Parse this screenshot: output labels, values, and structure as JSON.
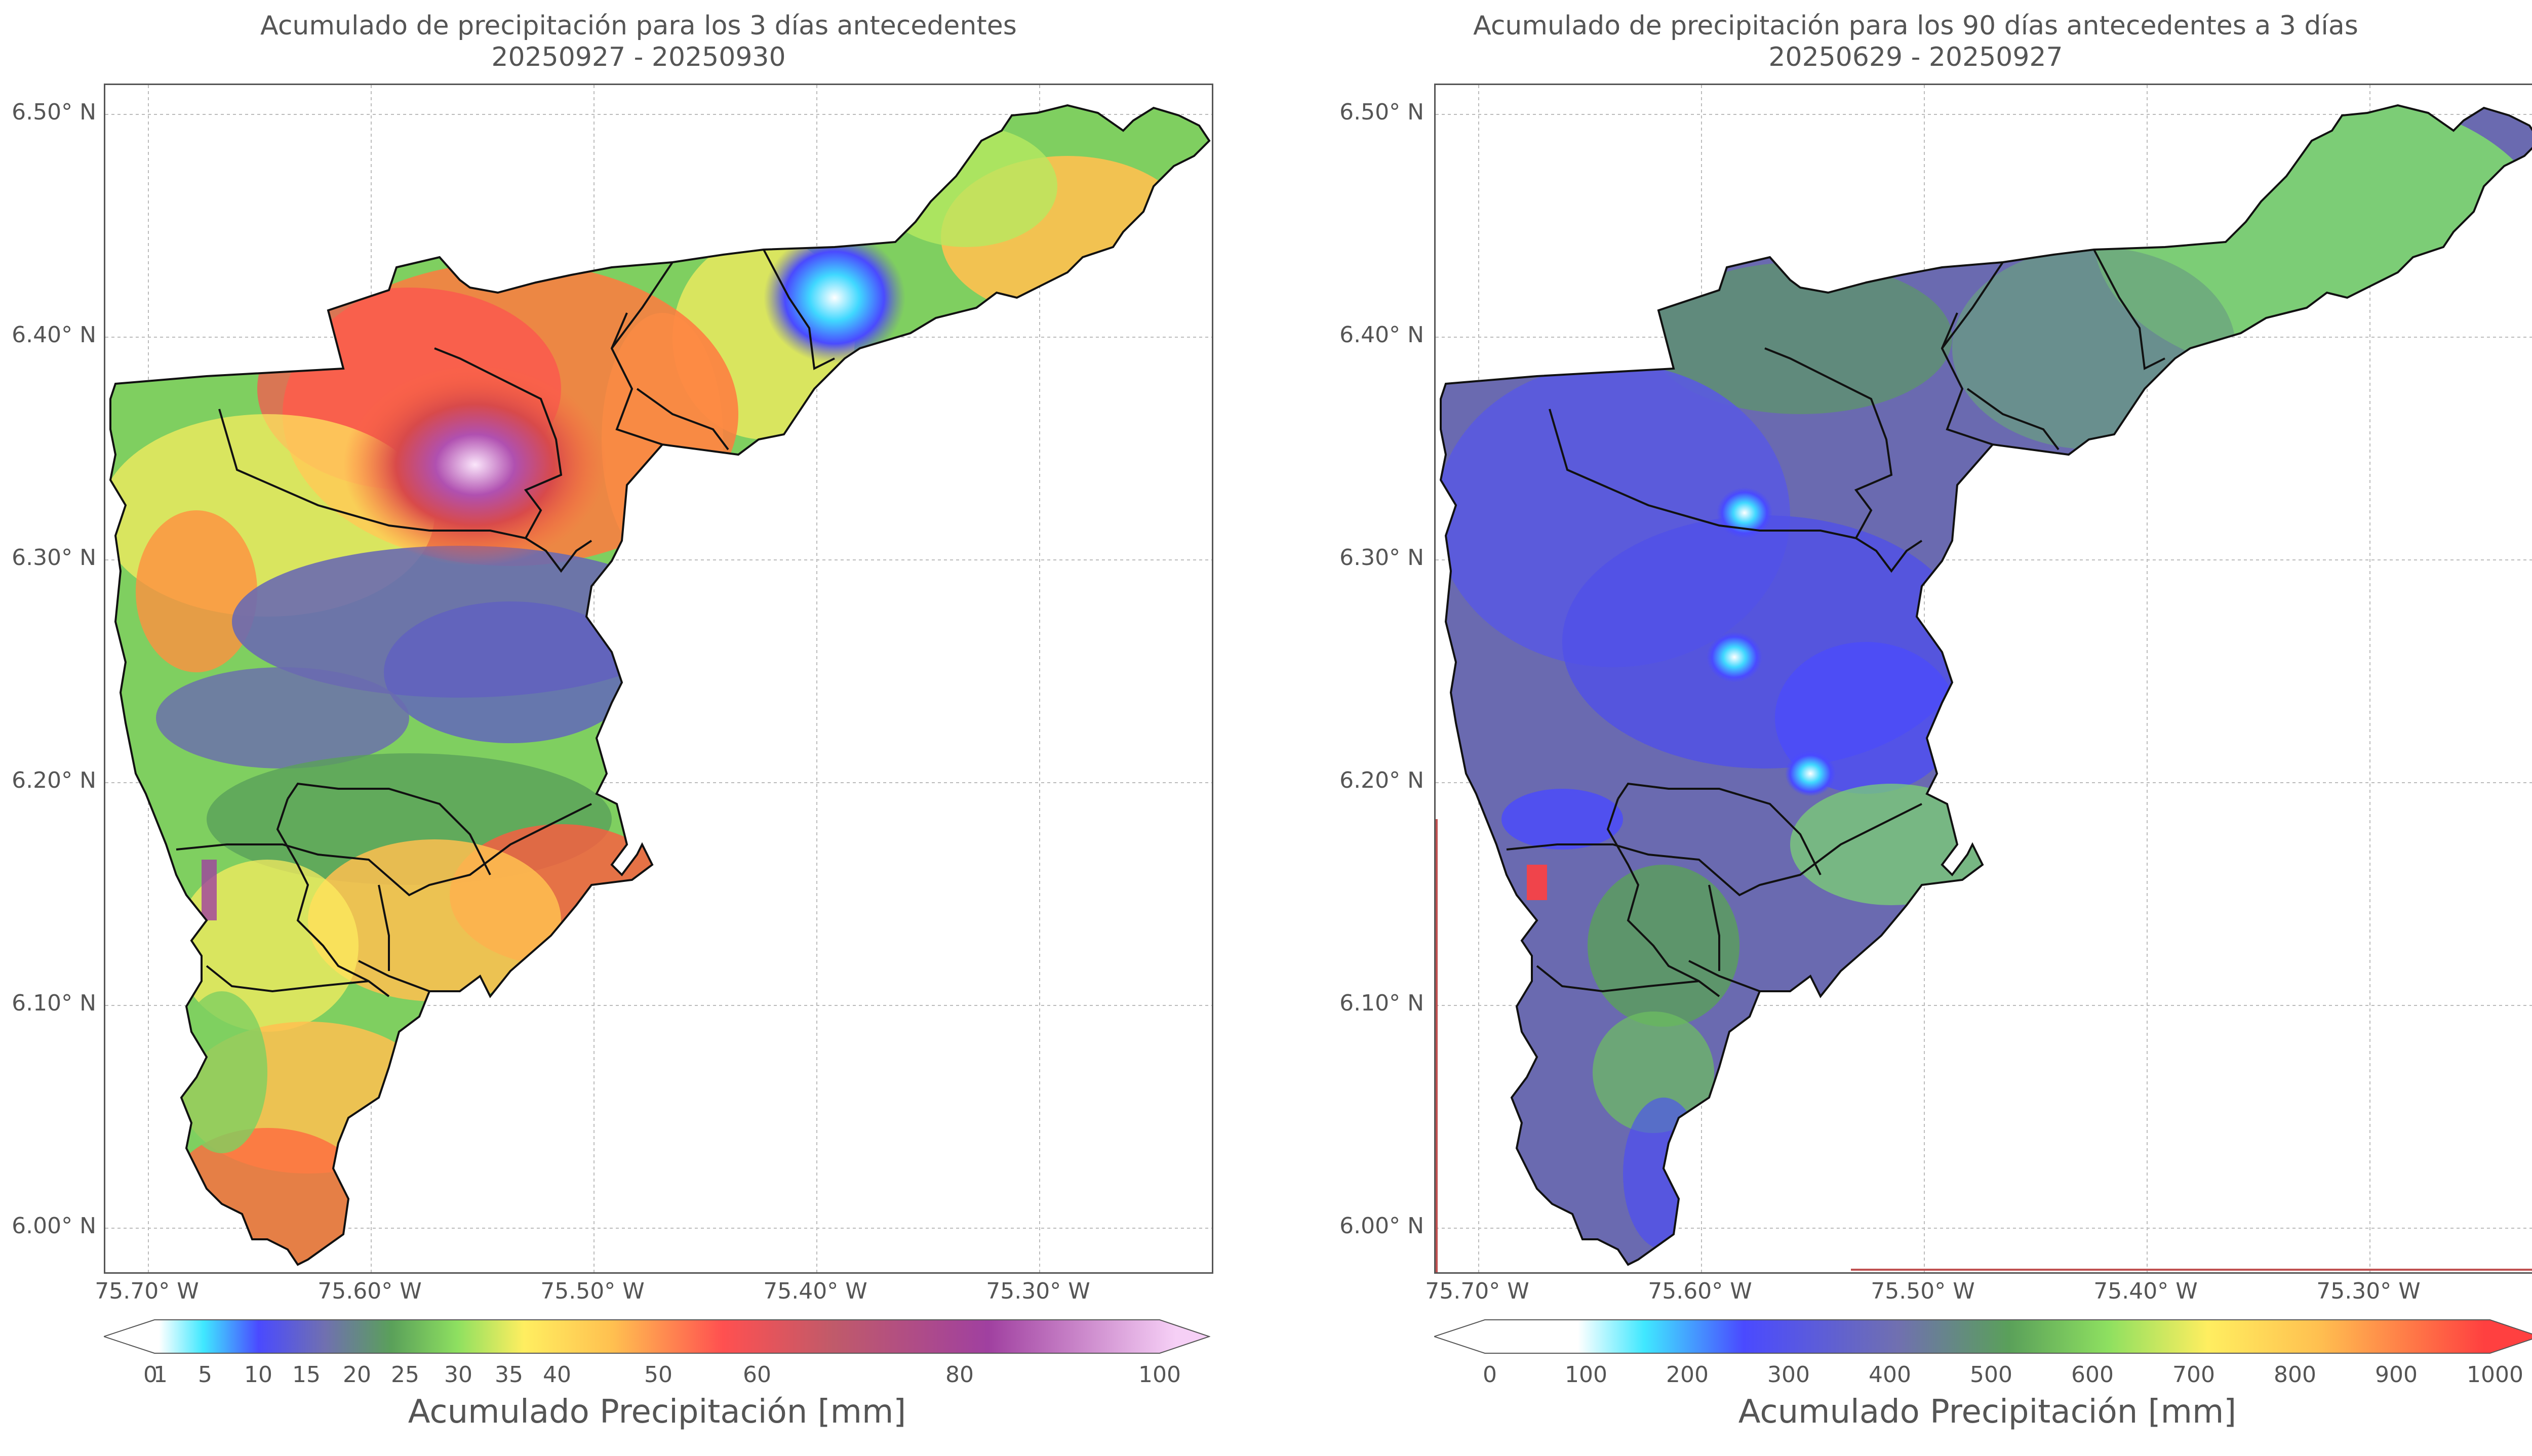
{
  "maps": [
    {
      "title_line1": "Acumulado de precipitación para los 3 días antecedentes",
      "title_line2": "20250927 - 20250930",
      "colorbar_title": "Acumulado Precipitación [mm]",
      "colorbar_ticks": [
        "0",
        "1",
        "5",
        "10",
        "15",
        "20",
        "25",
        "30",
        "35",
        "40",
        "50",
        "60",
        "80",
        "100"
      ],
      "colors": [
        "#ffffff",
        "#40e0ff",
        "#4a4aff",
        "#6a6ab0",
        "#5aa05a",
        "#6bd45a",
        "#b6e860",
        "#ffee60",
        "#ffc050",
        "#ff9040",
        "#ff5050",
        "#c06060",
        "#a040a0",
        "#f0c0f0"
      ]
    },
    {
      "title_line1": "Acumulado de precipitación para los 90 días antecedentes a 3 días",
      "title_line2": "20250629 - 20250927",
      "colorbar_title": "Acumulado Precipitación [mm]",
      "colorbar_ticks": [
        "0",
        "100",
        "200",
        "300",
        "400",
        "500",
        "600",
        "700",
        "800",
        "900",
        "1000"
      ],
      "colors": [
        "#ffffff",
        "#40e0ff",
        "#4a4aff",
        "#6a6ab0",
        "#5aa05a",
        "#6bd45a",
        "#b6e860",
        "#ffee60",
        "#ffc050",
        "#ff9040",
        "#ff4040"
      ]
    }
  ],
  "y_ticks": [
    "6.50° N",
    "6.40° N",
    "6.30° N",
    "6.20° N",
    "6.10° N",
    "6.00° N"
  ],
  "x_ticks": [
    "75.70° W",
    "75.60° W",
    "75.50° W",
    "75.40° W",
    "75.30° W"
  ]
}
